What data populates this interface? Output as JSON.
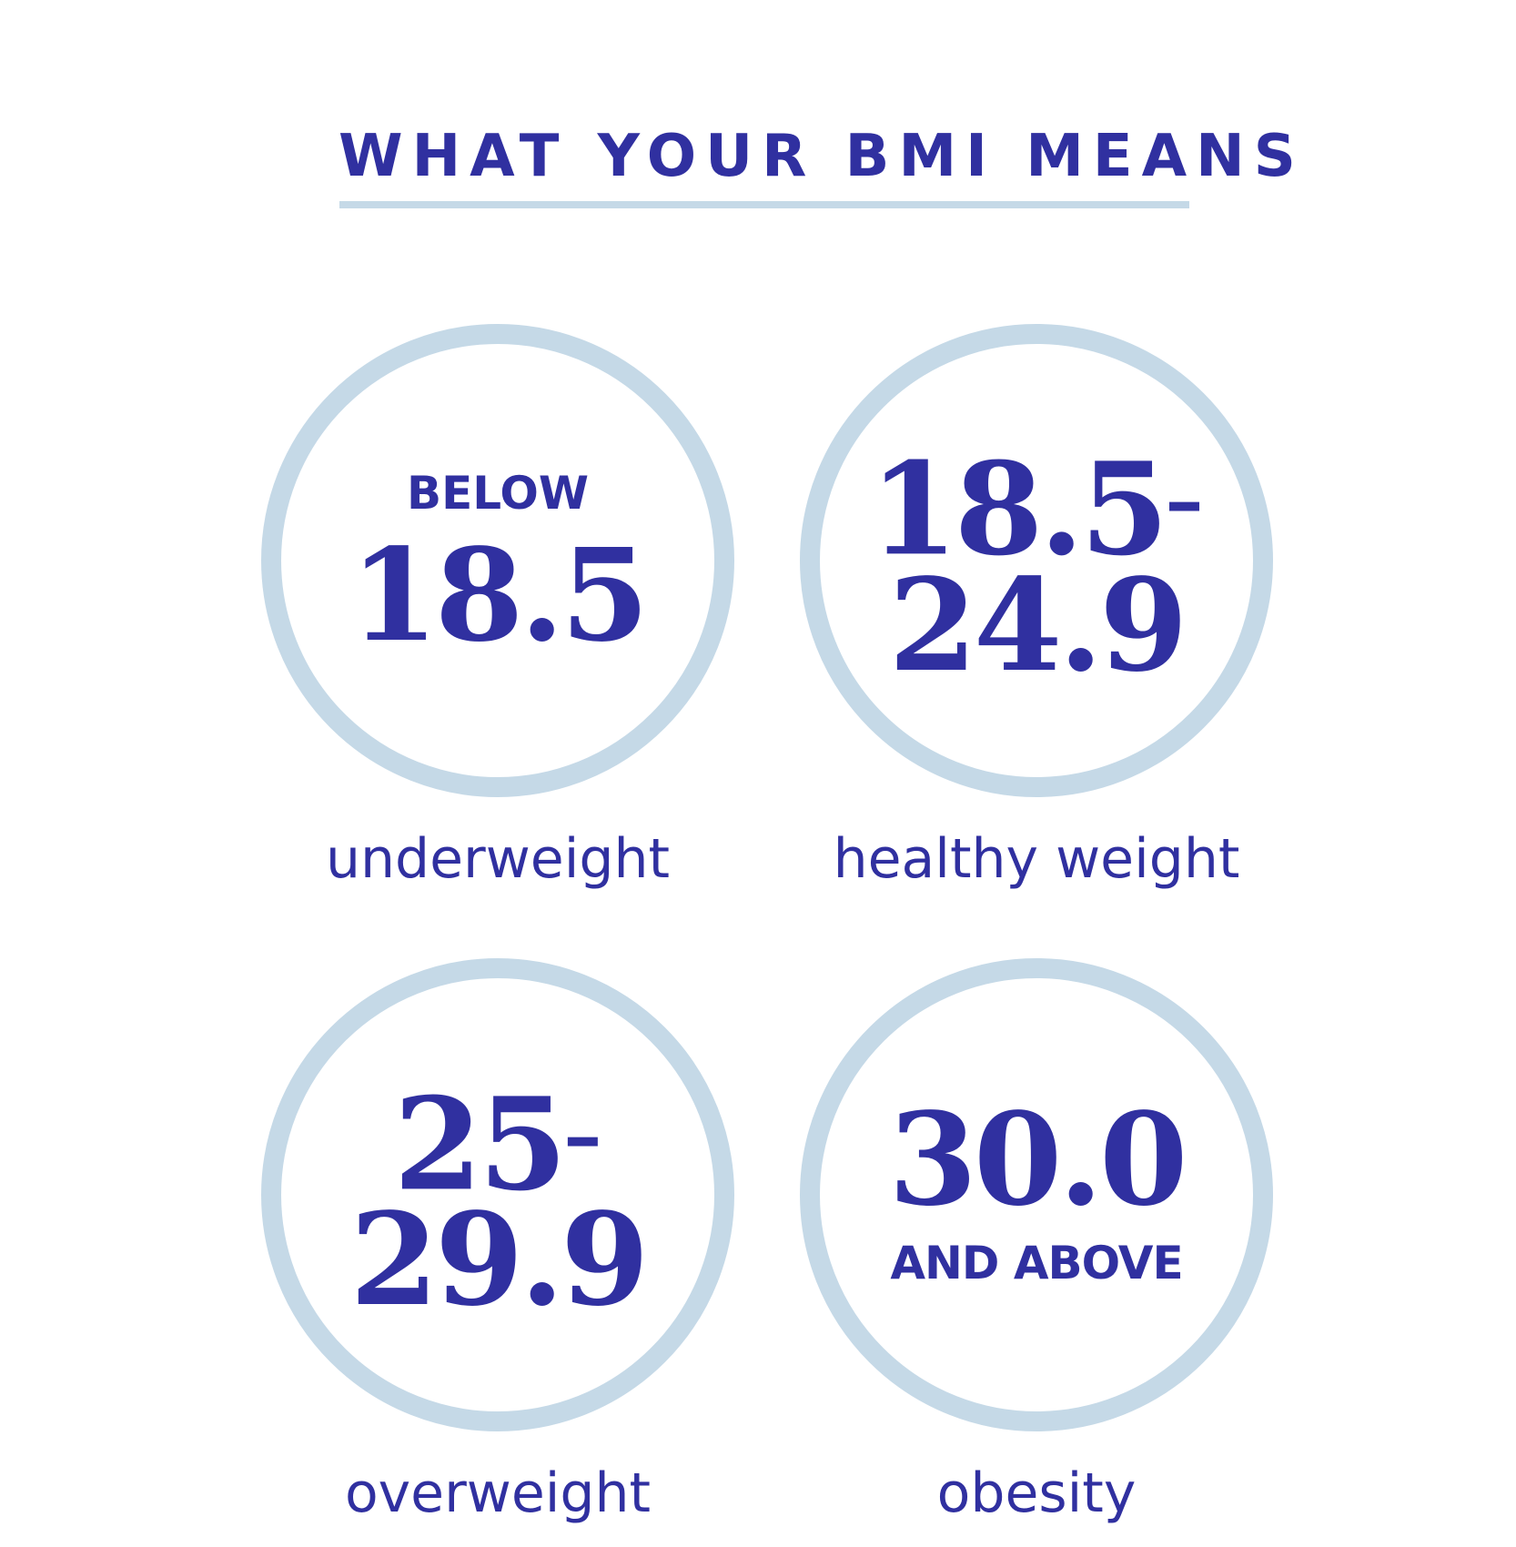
{
  "title": "WHAT YOUR BMI MEANS",
  "categories": [
    {
      "prefix": "BELOW",
      "value": "18.5",
      "label": "underweight"
    },
    {
      "value_line1": "18.5",
      "dash": "–",
      "value_line2": "24.9",
      "label": "healthy weight"
    },
    {
      "value_line1": "25",
      "dash": "–",
      "value_line2": "29.9",
      "label": "overweight"
    },
    {
      "value": "30.0",
      "suffix": "AND ABOVE",
      "label": "obesity"
    }
  ],
  "colors": {
    "text": "#3030a0",
    "ring": "#c5d9e7",
    "background": "#ffffff"
  }
}
